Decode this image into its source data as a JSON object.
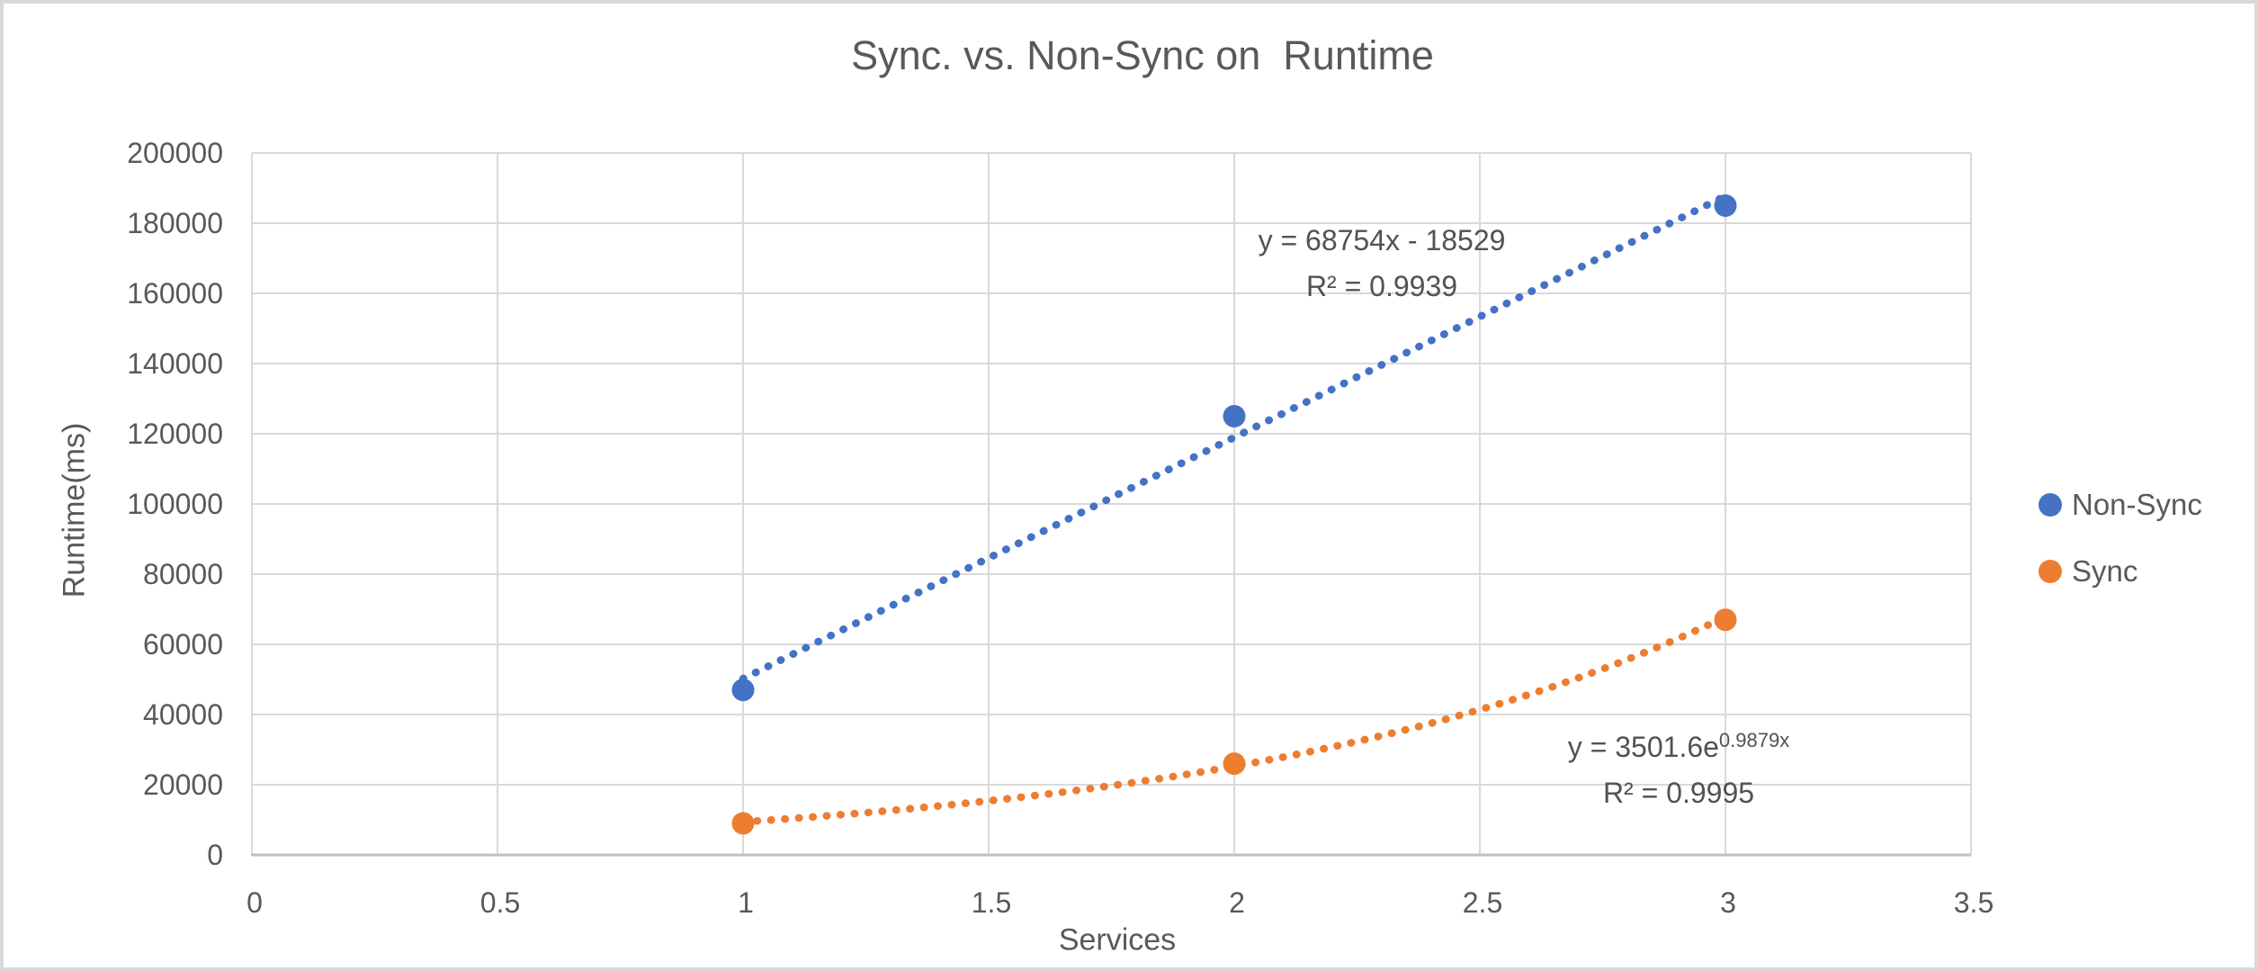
{
  "chart_data": {
    "type": "scatter",
    "title": "Sync. vs. Non-Sync on  Runtime",
    "xlabel": "Services",
    "ylabel": "Runtime(ms)",
    "xlim": [
      0,
      3.5
    ],
    "ylim": [
      0,
      200000
    ],
    "x_tick_step": 0.5,
    "y_tick_step": 20000,
    "grid": true,
    "legend_position": "right",
    "colors": {
      "gridline": "#d9d9d9",
      "axis_line": "#bfbfbf",
      "text": "#595959"
    },
    "series": [
      {
        "name": "Non-Sync",
        "color": "#4472C4",
        "x": [
          1,
          2,
          3
        ],
        "y": [
          47000,
          125000,
          185000
        ],
        "trendline": {
          "type": "linear",
          "style": "dotted",
          "slope": 68754,
          "intercept": -18529,
          "x_range": [
            1,
            3
          ],
          "equation_label": "y = 68754x - 18529",
          "r_squared_label": "R² = 0.9939"
        }
      },
      {
        "name": "Sync",
        "color": "#ED7D31",
        "x": [
          1,
          2,
          3
        ],
        "y": [
          9000,
          26000,
          67000
        ],
        "trendline": {
          "type": "exponential",
          "style": "dotted",
          "coefficient": 3501.6,
          "exponent": 0.9879,
          "x_range": [
            1,
            3
          ],
          "equation_base": "y = 3501.6e",
          "equation_exponent": "0.9879x",
          "r_squared_label": "R² = 0.9995"
        }
      }
    ]
  }
}
